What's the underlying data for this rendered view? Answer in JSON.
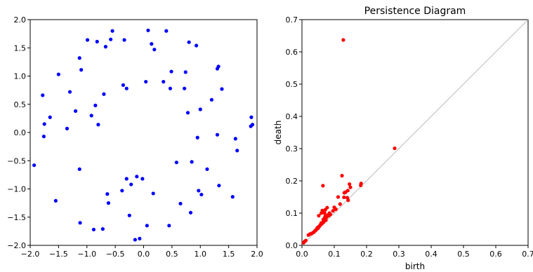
{
  "chart_data": [
    {
      "type": "scatter",
      "title": "",
      "xlabel": "",
      "ylabel": "",
      "xlim": [
        -2.0,
        2.0
      ],
      "ylim": [
        -2.0,
        2.0
      ],
      "xticks": [
        "−2.0",
        "−1.5",
        "−1.0",
        "−0.5",
        "0.0",
        "0.5",
        "1.0",
        "1.5",
        "2.0"
      ],
      "yticks": [
        "−2.0",
        "−1.5",
        "−1.0",
        "−0.5",
        "0.0",
        "0.5",
        "1.0",
        "1.5",
        "2.0"
      ],
      "grid": false,
      "color": "#0000ff",
      "points": [
        [
          -1.93,
          -0.58
        ],
        [
          -1.75,
          0.15
        ],
        [
          -1.78,
          0.66
        ],
        [
          -1.76,
          -0.07
        ],
        [
          -1.65,
          0.27
        ],
        [
          -1.55,
          -1.21
        ],
        [
          -1.5,
          1.03
        ],
        [
          -1.35,
          0.07
        ],
        [
          -1.3,
          0.72
        ],
        [
          -1.2,
          0.38
        ],
        [
          -1.13,
          1.32
        ],
        [
          -1.1,
          1.11
        ],
        [
          -1.13,
          -0.65
        ],
        [
          -1.12,
          -1.6
        ],
        [
          -0.99,
          1.64
        ],
        [
          -0.92,
          0.3
        ],
        [
          -0.88,
          -1.72
        ],
        [
          -0.85,
          0.48
        ],
        [
          -0.82,
          1.61
        ],
        [
          -0.8,
          0.14
        ],
        [
          -0.72,
          -1.71
        ],
        [
          -0.7,
          0.68
        ],
        [
          -0.67,
          1.52
        ],
        [
          -0.64,
          -1.09
        ],
        [
          -0.62,
          -1.25
        ],
        [
          -0.58,
          1.65
        ],
        [
          -0.55,
          1.8
        ],
        [
          -0.38,
          -1.03
        ],
        [
          -0.36,
          0.84
        ],
        [
          -0.34,
          1.64
        ],
        [
          -0.3,
          -0.82
        ],
        [
          -0.3,
          0.78
        ],
        [
          -0.25,
          -1.47
        ],
        [
          -0.22,
          -0.92
        ],
        [
          -0.15,
          -1.9
        ],
        [
          -0.12,
          -0.78
        ],
        [
          -0.07,
          -1.88
        ],
        [
          -0.02,
          -0.82
        ],
        [
          0.04,
          0.9
        ],
        [
          0.06,
          -1.65
        ],
        [
          0.08,
          1.81
        ],
        [
          0.14,
          1.57
        ],
        [
          0.19,
          1.47
        ],
        [
          0.17,
          -1.08
        ],
        [
          0.35,
          0.9
        ],
        [
          0.4,
          1.8
        ],
        [
          0.45,
          -1.65
        ],
        [
          0.47,
          0.78
        ],
        [
          0.49,
          1.08
        ],
        [
          0.58,
          -0.53
        ],
        [
          0.65,
          -1.26
        ],
        [
          0.72,
          0.78
        ],
        [
          0.74,
          1.07
        ],
        [
          0.78,
          0.35
        ],
        [
          0.8,
          1.6
        ],
        [
          0.83,
          -1.42
        ],
        [
          0.85,
          -0.52
        ],
        [
          0.93,
          1.54
        ],
        [
          0.95,
          -0.09
        ],
        [
          0.97,
          -1.03
        ],
        [
          1.0,
          0.41
        ],
        [
          1.02,
          -1.1
        ],
        [
          1.12,
          -0.65
        ],
        [
          1.2,
          0.58
        ],
        [
          1.3,
          -0.04
        ],
        [
          1.3,
          1.13
        ],
        [
          1.32,
          1.17
        ],
        [
          1.33,
          -0.94
        ],
        [
          1.38,
          0.77
        ],
        [
          1.57,
          -1.14
        ],
        [
          1.62,
          -0.11
        ],
        [
          1.65,
          -0.32
        ],
        [
          1.89,
          0.11
        ],
        [
          1.9,
          0.27
        ],
        [
          1.92,
          0.14
        ]
      ]
    },
    {
      "type": "scatter",
      "title": "Persistence Diagram",
      "xlabel": "birth",
      "ylabel": "death",
      "xlim": [
        0.0,
        0.7
      ],
      "ylim": [
        0.0,
        0.7
      ],
      "xticks": [
        "0.0",
        "0.1",
        "0.2",
        "0.3",
        "0.4",
        "0.5",
        "0.6",
        "0.7"
      ],
      "yticks": [
        "0.0",
        "0.1",
        "0.2",
        "0.3",
        "0.4",
        "0.5",
        "0.6",
        "0.7"
      ],
      "grid": false,
      "diagonal": true,
      "color": "#ff0000",
      "points": [
        [
          0.128,
          0.637
        ],
        [
          0.287,
          0.301
        ],
        [
          0.065,
          0.185
        ],
        [
          0.124,
          0.216
        ],
        [
          0.182,
          0.186
        ],
        [
          0.183,
          0.192
        ],
        [
          0.147,
          0.19
        ],
        [
          0.15,
          0.18
        ],
        [
          0.135,
          0.165
        ],
        [
          0.142,
          0.17
        ],
        [
          0.131,
          0.163
        ],
        [
          0.13,
          0.149
        ],
        [
          0.14,
          0.148
        ],
        [
          0.143,
          0.14
        ],
        [
          0.112,
          0.15
        ],
        [
          0.118,
          0.128
        ],
        [
          0.1,
          0.118
        ],
        [
          0.105,
          0.112
        ],
        [
          0.096,
          0.107
        ],
        [
          0.078,
          0.117
        ],
        [
          0.072,
          0.11
        ],
        [
          0.063,
          0.108
        ],
        [
          0.052,
          0.092
        ],
        [
          0.06,
          0.1
        ],
        [
          0.07,
          0.1
        ],
        [
          0.072,
          0.09
        ],
        [
          0.08,
          0.094
        ],
        [
          0.083,
          0.092
        ],
        [
          0.085,
          0.1
        ],
        [
          0.088,
          0.096
        ],
        [
          0.075,
          0.086
        ],
        [
          0.07,
          0.085
        ],
        [
          0.078,
          0.09
        ],
        [
          0.066,
          0.08
        ],
        [
          0.074,
          0.078
        ],
        [
          0.067,
          0.072
        ],
        [
          0.06,
          0.07
        ],
        [
          0.062,
          0.067
        ],
        [
          0.057,
          0.064
        ],
        [
          0.055,
          0.06
        ],
        [
          0.052,
          0.058
        ],
        [
          0.048,
          0.055
        ],
        [
          0.05,
          0.053
        ],
        [
          0.045,
          0.05
        ],
        [
          0.043,
          0.047
        ],
        [
          0.04,
          0.045
        ],
        [
          0.038,
          0.042
        ],
        [
          0.035,
          0.04
        ],
        [
          0.03,
          0.037
        ],
        [
          0.025,
          0.035
        ],
        [
          0.02,
          0.032
        ],
        [
          0.012,
          0.015
        ],
        [
          0.008,
          0.012
        ],
        [
          0.005,
          0.008
        ]
      ]
    }
  ]
}
